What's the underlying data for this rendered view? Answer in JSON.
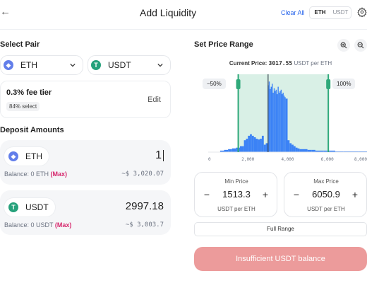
{
  "header": {
    "title": "Add Liquidity",
    "clear_all": "Clear All",
    "toggle": [
      "ETH",
      "USDT"
    ]
  },
  "pair": {
    "title": "Select Pair",
    "token_a": "ETH",
    "token_b": "USDT",
    "fee_tier": "0.3% fee tier",
    "fee_select": "84% select",
    "edit": "Edit"
  },
  "deposit": {
    "title": "Deposit Amounts",
    "a": {
      "token": "ETH",
      "amount": "1",
      "balance_prefix": "Balance: 0 ETH",
      "max": "(Max)",
      "usd": "~$ 3,020.07"
    },
    "b": {
      "token": "USDT",
      "amount": "2997.18",
      "balance_prefix": "Balance: 0 USDT",
      "max": "(Max)",
      "usd": "~$ 3,003.7"
    }
  },
  "range": {
    "title": "Set Price Range",
    "current_label": "Current Price:",
    "current_value": "3017.55",
    "current_unit": "USDT per ETH",
    "low_pct": "−50%",
    "high_pct": "100%",
    "min_label": "Min Price",
    "min_value": "1513.3",
    "max_label": "Max Price",
    "max_value": "6050.9",
    "unit": "USDT per ETH",
    "full_range": "Full Range",
    "action": "Insufficient USDT balance"
  },
  "colors": {
    "accent_blue": "#3b82f6",
    "range_green": "#2fa97a",
    "range_band": "#d9f0e6",
    "action_bg": "#ec9b9b",
    "max_pink": "#d6276c"
  },
  "chart_data": {
    "type": "bar",
    "x_ticks": [
      "0",
      "2,000",
      "4,000",
      "6,000",
      "8,000"
    ],
    "xlim": [
      0,
      8000
    ],
    "selected_range": [
      1513.3,
      6050.9
    ],
    "current_price": 3017.55,
    "bins_x": [
      600,
      800,
      1000,
      1200,
      1400,
      1600,
      1800,
      1900,
      2000,
      2100,
      2200,
      2300,
      2400,
      2500,
      2600,
      2700,
      2800,
      2900,
      3000,
      3050,
      3100,
      3150,
      3200,
      3250,
      3300,
      3350,
      3400,
      3450,
      3500,
      3550,
      3600,
      3650,
      3700,
      3750,
      3800,
      3850,
      3900,
      4000,
      4100,
      4200,
      4300,
      4400,
      4500,
      4600,
      4800,
      5000,
      5200,
      5400,
      5600,
      5800,
      6000,
      6400,
      6800,
      7200,
      7600,
      8000
    ],
    "bins_y": [
      2,
      3,
      4,
      5,
      6,
      8,
      16,
      18,
      22,
      24,
      22,
      20,
      18,
      17,
      18,
      22,
      10,
      12,
      90,
      95,
      85,
      88,
      92,
      80,
      86,
      82,
      84,
      78,
      88,
      80,
      82,
      84,
      78,
      80,
      76,
      74,
      72,
      16,
      12,
      10,
      8,
      6,
      5,
      4,
      4,
      3,
      3,
      2,
      2,
      2,
      2,
      1,
      1,
      1,
      1,
      1
    ]
  }
}
